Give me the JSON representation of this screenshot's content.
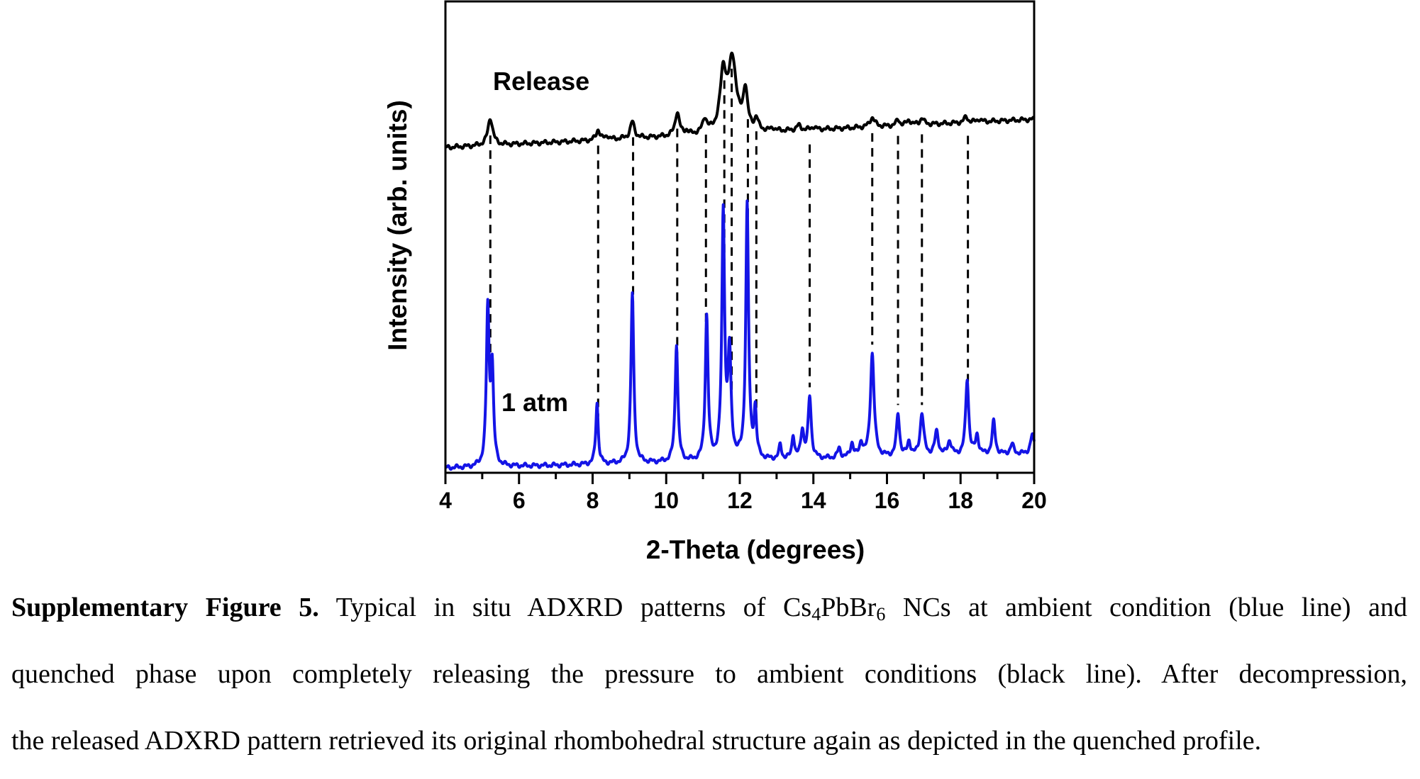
{
  "chart_data": {
    "type": "line",
    "xlabel": "2-Theta (degrees)",
    "ylabel": "Intensity (arb. units)",
    "xlim": [
      4,
      20
    ],
    "ylim": [
      0,
      1
    ],
    "x_ticks": [
      4,
      6,
      8,
      10,
      12,
      14,
      16,
      18,
      20
    ],
    "grid": false,
    "legend": "none",
    "series": [
      {
        "name": "Release",
        "color": "#000000",
        "baseline": 0.69,
        "drift": 0.06,
        "peaks": [
          {
            "x": 5.22,
            "h": 0.058,
            "w": 0.08
          },
          {
            "x": 8.15,
            "h": 0.022,
            "w": 0.06
          },
          {
            "x": 8.4,
            "h": 0.008,
            "w": 0.05
          },
          {
            "x": 9.08,
            "h": 0.035,
            "w": 0.07
          },
          {
            "x": 10.3,
            "h": 0.05,
            "w": 0.07
          },
          {
            "x": 10.55,
            "h": 0.008,
            "w": 0.05
          },
          {
            "x": 11.05,
            "h": 0.03,
            "w": 0.07
          },
          {
            "x": 11.55,
            "h": 0.12,
            "w": 0.1
          },
          {
            "x": 11.8,
            "h": 0.15,
            "w": 0.13
          },
          {
            "x": 12.15,
            "h": 0.085,
            "w": 0.07
          },
          {
            "x": 12.45,
            "h": 0.025,
            "w": 0.06
          },
          {
            "x": 12.9,
            "h": 0.006,
            "w": 0.06
          },
          {
            "x": 13.6,
            "h": 0.01,
            "w": 0.07
          },
          {
            "x": 14.0,
            "h": 0.006,
            "w": 0.06
          },
          {
            "x": 15.6,
            "h": 0.02,
            "w": 0.08
          },
          {
            "x": 16.3,
            "h": 0.012,
            "w": 0.06
          },
          {
            "x": 16.6,
            "h": 0.01,
            "w": 0.07
          },
          {
            "x": 16.95,
            "h": 0.014,
            "w": 0.06
          },
          {
            "x": 18.15,
            "h": 0.012,
            "w": 0.06
          },
          {
            "x": 18.5,
            "h": 0.006,
            "w": 0.06
          }
        ]
      },
      {
        "name": "1 atm",
        "color": "#1414e6",
        "baseline": 0.01,
        "drift": 0.03,
        "peaks": [
          {
            "x": 5.15,
            "h": 0.33,
            "w": 0.045
          },
          {
            "x": 5.27,
            "h": 0.2,
            "w": 0.045
          },
          {
            "x": 8.12,
            "h": 0.13,
            "w": 0.04
          },
          {
            "x": 9.08,
            "h": 0.36,
            "w": 0.045
          },
          {
            "x": 10.28,
            "h": 0.25,
            "w": 0.045
          },
          {
            "x": 11.1,
            "h": 0.305,
            "w": 0.045
          },
          {
            "x": 11.55,
            "h": 0.52,
            "w": 0.045
          },
          {
            "x": 11.72,
            "h": 0.22,
            "w": 0.05
          },
          {
            "x": 12.2,
            "h": 0.54,
            "w": 0.045
          },
          {
            "x": 12.42,
            "h": 0.1,
            "w": 0.04
          },
          {
            "x": 13.1,
            "h": 0.03,
            "w": 0.04
          },
          {
            "x": 13.45,
            "h": 0.05,
            "w": 0.04
          },
          {
            "x": 13.7,
            "h": 0.06,
            "w": 0.05
          },
          {
            "x": 13.9,
            "h": 0.13,
            "w": 0.05
          },
          {
            "x": 14.7,
            "h": 0.02,
            "w": 0.05
          },
          {
            "x": 15.05,
            "h": 0.03,
            "w": 0.05
          },
          {
            "x": 15.3,
            "h": 0.03,
            "w": 0.05
          },
          {
            "x": 15.6,
            "h": 0.22,
            "w": 0.06
          },
          {
            "x": 16.3,
            "h": 0.09,
            "w": 0.05
          },
          {
            "x": 16.6,
            "h": 0.03,
            "w": 0.05
          },
          {
            "x": 16.95,
            "h": 0.09,
            "w": 0.06
          },
          {
            "x": 17.35,
            "h": 0.05,
            "w": 0.06
          },
          {
            "x": 17.7,
            "h": 0.03,
            "w": 0.06
          },
          {
            "x": 18.18,
            "h": 0.16,
            "w": 0.05
          },
          {
            "x": 18.45,
            "h": 0.04,
            "w": 0.05
          },
          {
            "x": 18.9,
            "h": 0.07,
            "w": 0.05
          },
          {
            "x": 19.4,
            "h": 0.02,
            "w": 0.06
          },
          {
            "x": 19.95,
            "h": 0.04,
            "w": 0.06
          }
        ]
      }
    ],
    "reference_lines": [
      5.22,
      8.15,
      9.1,
      10.3,
      11.08,
      11.58,
      11.78,
      12.22,
      12.45,
      13.9,
      15.6,
      16.3,
      16.95,
      18.2
    ],
    "annotations": [
      "Release",
      "1 atm"
    ]
  },
  "caption": {
    "label": "Supplementary Figure 5.",
    "line1": "Typical in situ ADXRD patterns of Cs",
    "sub1": "4",
    "mid1": "PbBr",
    "sub2": "6",
    "end1": "NCs at ambient condition (blue line) and",
    "line2": "quenched phase upon completely releasing the pressure to ambient conditions (black line). After decompression,",
    "line3": "the released ADXRD pattern retrieved its original rhombohedral structure again as depicted in the quenched profile."
  }
}
